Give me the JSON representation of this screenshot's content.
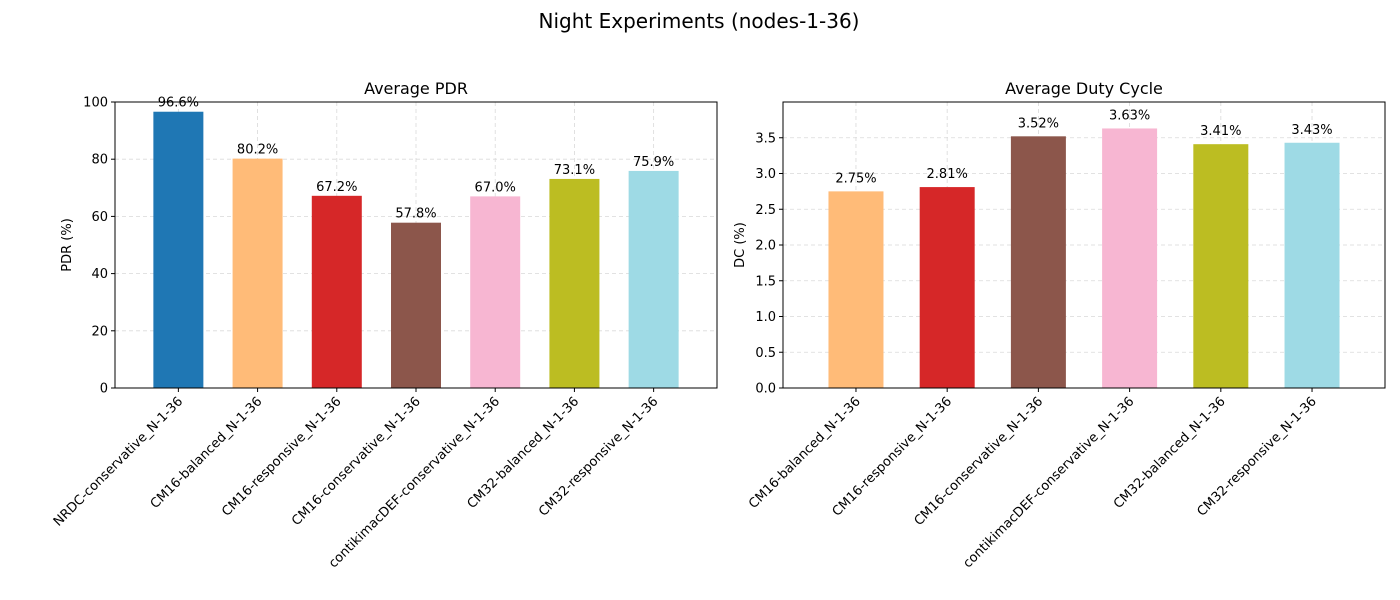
{
  "figure": {
    "title": "Night Experiments (nodes-1-36)"
  },
  "chart_data": [
    {
      "type": "bar",
      "title": "Average PDR",
      "ylabel": "PDR (%)",
      "xlabel": "",
      "ylim": [
        0,
        100
      ],
      "yticks": [
        0,
        20,
        40,
        60,
        80,
        100
      ],
      "ytick_labels": [
        "0",
        "20",
        "40",
        "60",
        "80",
        "100"
      ],
      "grid": true,
      "categories": [
        "NRDC-conservative_N-1-36",
        "CM16-balanced_N-1-36",
        "CM16-responsive_N-1-36",
        "CM16-conservative_N-1-36",
        "contikimacDEF-conservative_N-1-36",
        "CM32-balanced_N-1-36",
        "CM32-responsive_N-1-36"
      ],
      "values": [
        96.6,
        80.2,
        67.2,
        57.8,
        67.0,
        73.1,
        75.9
      ],
      "data_labels": [
        "96.6%",
        "80.2%",
        "67.2%",
        "57.8%",
        "67.0%",
        "73.1%",
        "75.9%"
      ],
      "colors": [
        "#1f77b4",
        "#ffbb78",
        "#d62728",
        "#8c564b",
        "#f7b6d2",
        "#bcbd22",
        "#9edae5"
      ]
    },
    {
      "type": "bar",
      "title": "Average Duty Cycle",
      "ylabel": "DC (%)",
      "xlabel": "",
      "ylim": [
        0,
        4.0
      ],
      "yticks": [
        0.0,
        0.5,
        1.0,
        1.5,
        2.0,
        2.5,
        3.0,
        3.5
      ],
      "ytick_labels": [
        "0.0",
        "0.5",
        "1.0",
        "1.5",
        "2.0",
        "2.5",
        "3.0",
        "3.5"
      ],
      "grid": true,
      "categories": [
        "CM16-balanced_N-1-36",
        "CM16-responsive_N-1-36",
        "CM16-conservative_N-1-36",
        "contikimacDEF-conservative_N-1-36",
        "CM32-balanced_N-1-36",
        "CM32-responsive_N-1-36"
      ],
      "values": [
        2.75,
        2.81,
        3.52,
        3.63,
        3.41,
        3.43
      ],
      "data_labels": [
        "2.75%",
        "2.81%",
        "3.52%",
        "3.63%",
        "3.41%",
        "3.43%"
      ],
      "colors": [
        "#ffbb78",
        "#d62728",
        "#8c564b",
        "#f7b6d2",
        "#bcbd22",
        "#9edae5"
      ]
    }
  ]
}
